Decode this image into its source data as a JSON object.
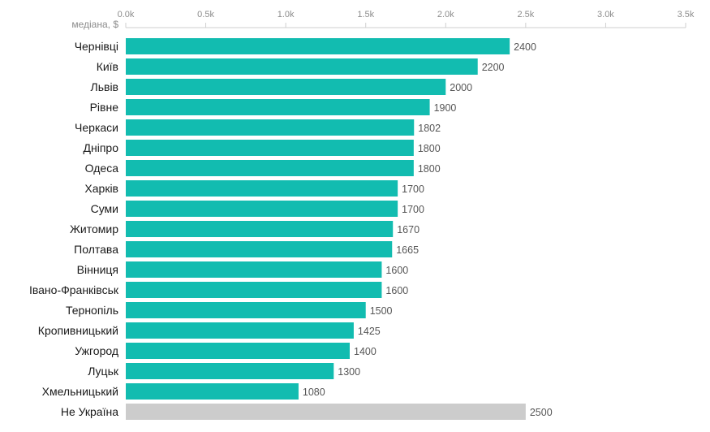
{
  "chart_data": {
    "type": "bar",
    "orientation": "horizontal",
    "y_unit_label": "медіана, $",
    "categories": [
      "Чернівці",
      "Київ",
      "Львів",
      "Рівне",
      "Черкаси",
      "Дніпро",
      "Одеса",
      "Харків",
      "Суми",
      "Житомир",
      "Полтава",
      "Вінниця",
      "Івано-Франківськ",
      "Тернопіль",
      "Кропивницький",
      "Ужгород",
      "Луцьк",
      "Хмельницький",
      "Не Україна"
    ],
    "values": [
      2400,
      2200,
      2000,
      1900,
      1802,
      1800,
      1800,
      1700,
      1700,
      1670,
      1665,
      1600,
      1600,
      1500,
      1425,
      1400,
      1300,
      1080,
      2500
    ],
    "xlim": [
      0,
      3500
    ],
    "x_ticks": [
      0,
      500,
      1000,
      1500,
      2000,
      2500,
      3000,
      3500
    ],
    "x_tick_labels": [
      "0.0k",
      "0.5k",
      "1.0k",
      "1.5k",
      "2.0k",
      "2.5k",
      "3.0k",
      "3.5k"
    ],
    "highlight_color": "#12bcb0",
    "other_color": "#cccccc",
    "other_category": "Не Україна",
    "grid": false,
    "legend": "none"
  }
}
